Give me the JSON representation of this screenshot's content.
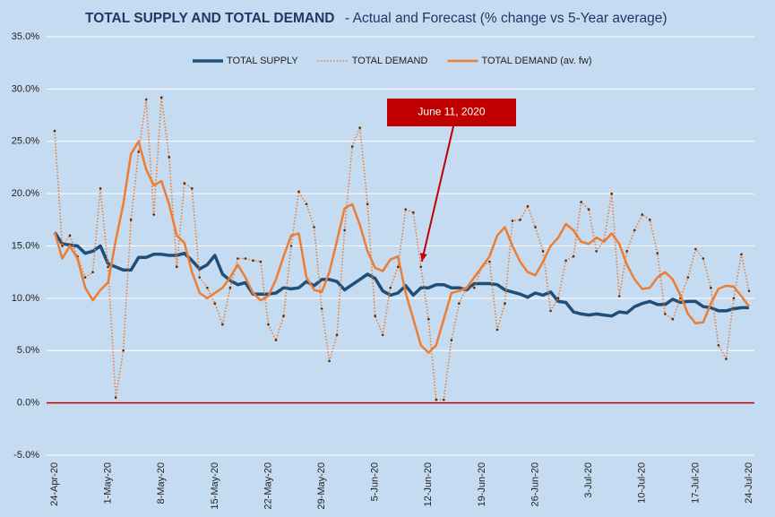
{
  "chart_data": {
    "type": "line",
    "title": "TOTAL SUPPLY AND TOTAL DEMAND",
    "subtitle": "- Actual and Forecast (% change vs 5-Year average)",
    "categories": [
      "24-Apr-20",
      null,
      null,
      null,
      null,
      null,
      null,
      "1-May-20",
      null,
      null,
      null,
      null,
      null,
      null,
      "8-May-20",
      null,
      null,
      null,
      null,
      null,
      null,
      "15-May-20",
      null,
      null,
      null,
      null,
      null,
      null,
      "22-May-20",
      null,
      null,
      null,
      null,
      null,
      null,
      "29-May-20",
      null,
      null,
      null,
      null,
      null,
      null,
      "5-Jun-20",
      null,
      null,
      null,
      null,
      null,
      null,
      "12-Jun-20",
      null,
      null,
      null,
      null,
      null,
      null,
      "19-Jun-20",
      null,
      null,
      null,
      null,
      null,
      null,
      "26-Jun-20",
      null,
      null,
      null,
      null,
      null,
      null,
      "3-Jul-20",
      null,
      null,
      null,
      null,
      null,
      null,
      "10-Jul-20",
      null,
      null,
      null,
      null,
      null,
      null,
      "17-Jul-20",
      null,
      null,
      null,
      null,
      null,
      null,
      "24-Jul-20"
    ],
    "series": [
      {
        "name": "TOTAL SUPPLY",
        "color": "#1f4e79",
        "style": "solid",
        "values": [
          16.3,
          15.2,
          15.1,
          15.0,
          14.3,
          14.5,
          15.0,
          13.3,
          13.0,
          12.7,
          12.7,
          13.9,
          13.9,
          14.2,
          14.2,
          14.1,
          14.1,
          14.3,
          13.6,
          12.8,
          13.2,
          14.1,
          12.3,
          11.7,
          11.3,
          11.5,
          10.4,
          10.4,
          10.4,
          10.5,
          11.0,
          10.9,
          11.0,
          11.6,
          11.2,
          11.8,
          11.8,
          11.6,
          10.8,
          11.3,
          11.8,
          12.3,
          11.9,
          10.7,
          10.3,
          10.5,
          11.2,
          10.3,
          11.0,
          11.0,
          11.3,
          11.3,
          11.0,
          11.0,
          10.8,
          11.4,
          11.4,
          11.4,
          11.3,
          10.8,
          10.6,
          10.4,
          10.1,
          10.5,
          10.3,
          10.6,
          9.7,
          9.6,
          8.7,
          8.5,
          8.4,
          8.5,
          8.4,
          8.3,
          8.7,
          8.6,
          9.2,
          9.5,
          9.7,
          9.4,
          9.4,
          9.9,
          9.6,
          9.7,
          9.7,
          9.2,
          9.1,
          8.8,
          8.8,
          9.0,
          9.1,
          9.1
        ]
      },
      {
        "name": "TOTAL DEMAND",
        "color": "#ed7d31",
        "style": "dotted",
        "values": [
          26.0,
          15.0,
          16.0,
          14.0,
          12.0,
          12.5,
          20.5,
          13.0,
          0.5,
          5.0,
          17.5,
          24.0,
          29.0,
          18.0,
          29.2,
          23.5,
          13.0,
          21.0,
          20.5,
          12.0,
          11.0,
          9.5,
          7.5,
          11.0,
          13.8,
          13.8,
          13.6,
          13.5,
          7.5,
          6.0,
          8.3,
          15.0,
          20.2,
          19.0,
          16.8,
          9.0,
          4.0,
          6.5,
          16.5,
          24.5,
          26.3,
          19.0,
          8.3,
          6.5,
          11.0,
          13.0,
          18.5,
          18.2,
          13.0,
          8.0,
          0.3,
          0.3,
          6.0,
          9.5,
          11.0,
          11.0,
          13.0,
          13.5,
          7.0,
          9.5,
          17.4,
          17.5,
          18.8,
          16.8,
          14.5,
          8.8,
          10.0,
          13.6,
          14.0,
          19.2,
          18.5,
          14.5,
          15.5,
          20.0,
          10.2,
          14.5,
          16.5,
          18.0,
          17.5,
          14.3,
          8.5,
          8.0,
          10.0,
          12.0,
          14.7,
          13.8,
          11.0,
          5.5,
          4.2,
          10.0,
          14.2,
          10.7
        ]
      },
      {
        "name": "TOTAL DEMAND (av. fw)",
        "color": "#ed7d31",
        "style": "solid",
        "values": [
          16.3,
          13.8,
          15.0,
          13.8,
          11.0,
          9.8,
          10.8,
          11.5,
          15.5,
          19.0,
          23.8,
          25.0,
          22.3,
          20.8,
          21.2,
          19.0,
          16.0,
          15.3,
          12.5,
          10.5,
          10.0,
          10.5,
          11.0,
          12.0,
          13.2,
          12.0,
          10.5,
          9.8,
          10.2,
          11.8,
          14.0,
          16.0,
          16.2,
          12.0,
          10.8,
          10.6,
          12.5,
          15.5,
          18.6,
          19.0,
          17.0,
          14.5,
          12.9,
          12.6,
          13.7,
          14.0,
          10.5,
          8.0,
          5.5,
          4.8,
          5.5,
          8.0,
          10.5,
          10.7,
          11.0,
          12.0,
          13.0,
          14.0,
          16.0,
          16.8,
          15.0,
          13.5,
          12.5,
          12.2,
          13.5,
          15.0,
          15.8,
          17.1,
          16.5,
          15.4,
          15.2,
          15.8,
          15.4,
          16.2,
          15.2,
          13.2,
          11.8,
          10.9,
          11.0,
          12.0,
          12.5,
          11.8,
          10.3,
          8.5,
          7.6,
          7.7,
          9.5,
          10.9,
          11.2,
          11.1,
          10.2,
          9.2
        ]
      }
    ],
    "ylim": [
      -5,
      35
    ],
    "yticks": [
      {
        "value": -5,
        "label": "-5.0%"
      },
      {
        "value": 0,
        "label": "0.0%"
      },
      {
        "value": 5,
        "label": "5.0%"
      },
      {
        "value": 10,
        "label": "10.0%"
      },
      {
        "value": 15,
        "label": "15.0%"
      },
      {
        "value": 20,
        "label": "20.0%"
      },
      {
        "value": 25,
        "label": "25.0%"
      },
      {
        "value": 30,
        "label": "30.0%"
      },
      {
        "value": 35,
        "label": "35.0%"
      }
    ],
    "grid": true,
    "zero_line_color": "#c00000",
    "legend": "top",
    "annotation": {
      "text": "June 11, 2020",
      "category_index": 48,
      "value": 13.0
    }
  }
}
